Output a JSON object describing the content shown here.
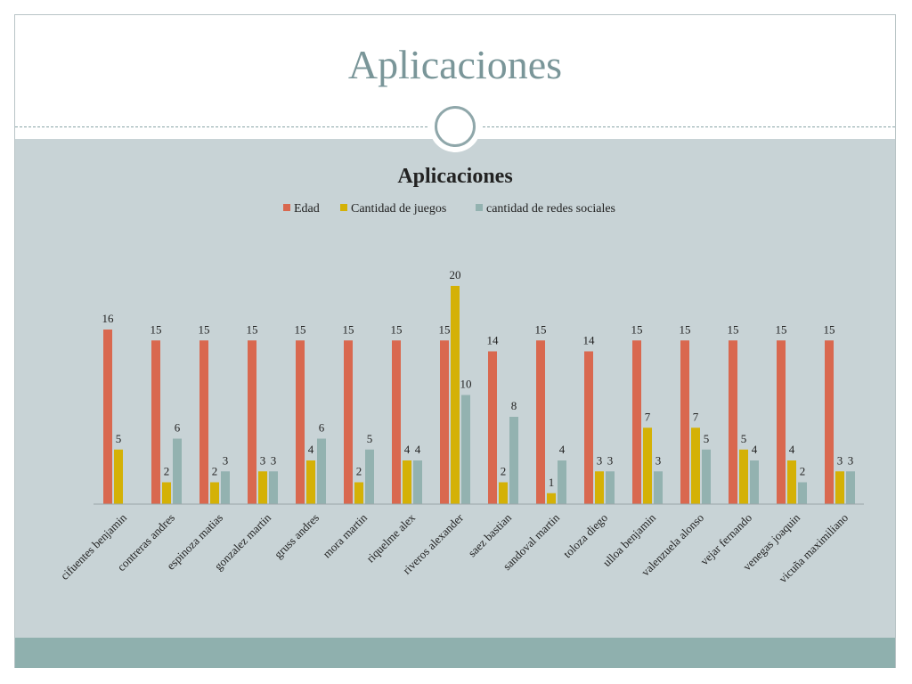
{
  "slide": {
    "title": "Aplicaciones"
  },
  "colors": {
    "edad": "#d9684f",
    "juegos": "#d4b106",
    "redes": "#93b2b0",
    "background": "#c8d3d6",
    "footer": "#8fb0ae"
  },
  "chart_data": {
    "type": "bar",
    "title": "Aplicaciones",
    "legend_position": "top",
    "grid": false,
    "ylim": [
      0,
      20
    ],
    "categories": [
      "cifuentes benjamin",
      "contreras andres",
      "espinoza matias",
      "gonzalez martin",
      "gruss andres",
      "mora martin",
      "riquelme alex",
      "riveros alexander",
      "saez bastian",
      "sandoval martin",
      "toloza diego",
      "ulloa benjamin",
      "valenzuela alonso",
      "vejar fernando",
      "venegas joaquin",
      "vicuña maximiliano"
    ],
    "series": [
      {
        "name": "Edad",
        "color": "#d9684f",
        "values": [
          16,
          15,
          15,
          15,
          15,
          15,
          15,
          15,
          14,
          15,
          14,
          15,
          15,
          15,
          15,
          15
        ]
      },
      {
        "name": "Cantidad de juegos",
        "color": "#d4b106",
        "values": [
          5,
          2,
          2,
          3,
          4,
          2,
          4,
          20,
          2,
          1,
          3,
          7,
          7,
          5,
          4,
          3
        ]
      },
      {
        "name": "cantidad de redes sociales",
        "color": "#93b2b0",
        "values": [
          null,
          6,
          3,
          3,
          6,
          5,
          4,
          10,
          8,
          4,
          3,
          3,
          5,
          4,
          2,
          3
        ]
      }
    ]
  }
}
